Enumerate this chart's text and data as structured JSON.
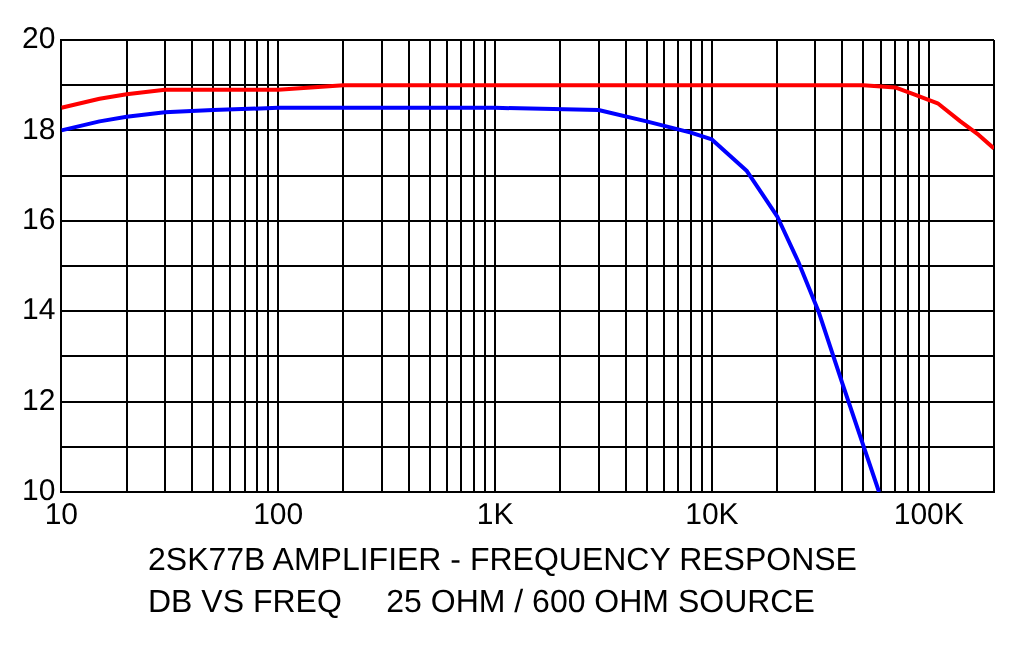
{
  "chart_data": {
    "type": "line",
    "title": "2SK77B AMPLIFIER - FREQUENCY RESPONSE",
    "subtitle": "DB VS FREQ     25 OHM / 600 OHM SOURCE",
    "log": "x",
    "grid": true,
    "legend": false,
    "marker": "none",
    "line_style": "solid",
    "xlim": [
      10,
      200000
    ],
    "ylim": [
      10,
      20
    ],
    "xticks": [
      {
        "value": 10,
        "label": "10"
      },
      {
        "value": 20,
        "label": null
      },
      {
        "value": 30,
        "label": null
      },
      {
        "value": 40,
        "label": null
      },
      {
        "value": 50,
        "label": null
      },
      {
        "value": 60,
        "label": null
      },
      {
        "value": 70,
        "label": null
      },
      {
        "value": 80,
        "label": null
      },
      {
        "value": 90,
        "label": null
      },
      {
        "value": 100,
        "label": "100"
      },
      {
        "value": 200,
        "label": null
      },
      {
        "value": 300,
        "label": null
      },
      {
        "value": 400,
        "label": null
      },
      {
        "value": 500,
        "label": null
      },
      {
        "value": 600,
        "label": null
      },
      {
        "value": 700,
        "label": null
      },
      {
        "value": 800,
        "label": null
      },
      {
        "value": 900,
        "label": null
      },
      {
        "value": 1000,
        "label": "1K"
      },
      {
        "value": 2000,
        "label": null
      },
      {
        "value": 3000,
        "label": null
      },
      {
        "value": 4000,
        "label": null
      },
      {
        "value": 5000,
        "label": null
      },
      {
        "value": 6000,
        "label": null
      },
      {
        "value": 7000,
        "label": null
      },
      {
        "value": 8000,
        "label": null
      },
      {
        "value": 9000,
        "label": null
      },
      {
        "value": 10000,
        "label": "10K"
      },
      {
        "value": 20000,
        "label": null
      },
      {
        "value": 30000,
        "label": null
      },
      {
        "value": 40000,
        "label": null
      },
      {
        "value": 50000,
        "label": null
      },
      {
        "value": 60000,
        "label": null
      },
      {
        "value": 70000,
        "label": null
      },
      {
        "value": 80000,
        "label": null
      },
      {
        "value": 90000,
        "label": null
      },
      {
        "value": 100000,
        "label": "100K"
      },
      {
        "value": 200000,
        "label": null
      }
    ],
    "yticks": [
      10,
      {
        "value": 11,
        "label": null
      },
      12,
      {
        "value": 13,
        "label": null
      },
      14,
      {
        "value": 15,
        "label": null
      },
      16,
      {
        "value": 17,
        "label": null
      },
      18,
      {
        "value": 19,
        "label": null
      },
      20
    ],
    "series": [
      {
        "color": "#ff0000",
        "x": [
          10,
          15,
          20,
          30,
          50,
          100,
          200,
          500,
          1000,
          10000,
          50000,
          70000,
          85000,
          110000,
          140000,
          170000,
          200000
        ],
        "values": [
          18.5,
          18.7,
          18.8,
          18.9,
          18.9,
          18.9,
          19.0,
          19.0,
          19.0,
          19.0,
          19.0,
          18.95,
          18.8,
          18.6,
          18.2,
          17.9,
          17.6
        ]
      },
      {
        "color": "#0000ff",
        "x": [
          10,
          15,
          20,
          30,
          50,
          100,
          1000,
          3000,
          5000,
          8000,
          10000,
          14500,
          20000,
          25000,
          31000,
          40000,
          51000,
          59000
        ],
        "values": [
          18.0,
          18.2,
          18.3,
          18.4,
          18.45,
          18.5,
          18.5,
          18.45,
          18.2,
          17.95,
          17.8,
          17.1,
          16.1,
          15.1,
          14.0,
          12.4,
          10.9,
          10.0
        ]
      }
    ]
  }
}
